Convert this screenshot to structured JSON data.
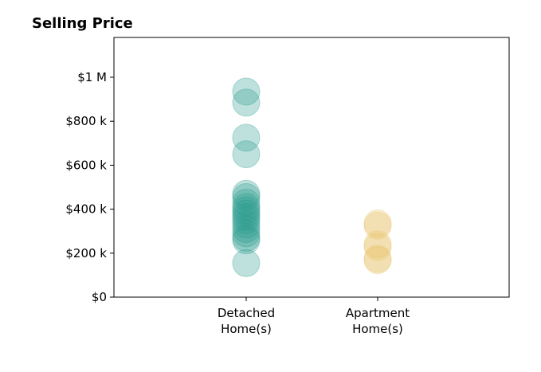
{
  "chart_data": {
    "type": "scatter",
    "title": "Selling Price",
    "xlabel": "",
    "ylabel": "",
    "categories": [
      [
        "Detached",
        "Home(s)"
      ],
      [
        "Apartment",
        "Home(s)"
      ]
    ],
    "ylim": [
      0,
      1000000
    ],
    "yticks": [
      {
        "value": 0,
        "label": "$0"
      },
      {
        "value": 200000,
        "label": "$200 k"
      },
      {
        "value": 400000,
        "label": "$400 k"
      },
      {
        "value": 600000,
        "label": "$600 k"
      },
      {
        "value": 800000,
        "label": "$800 k"
      },
      {
        "value": 1000000,
        "label": "$1 M"
      }
    ],
    "series": [
      {
        "category_index": 0,
        "color": "#2a9d8f",
        "values": [
          935000,
          885000,
          725000,
          650000,
          470000,
          455000,
          430000,
          410000,
          395000,
          380000,
          365000,
          350000,
          330000,
          310000,
          290000,
          270000,
          258000,
          155000
        ]
      },
      {
        "category_index": 1,
        "color": "#e9c46a",
        "values": [
          335000,
          325000,
          240000,
          228000,
          175000,
          168000
        ]
      }
    ],
    "grid": false
  }
}
